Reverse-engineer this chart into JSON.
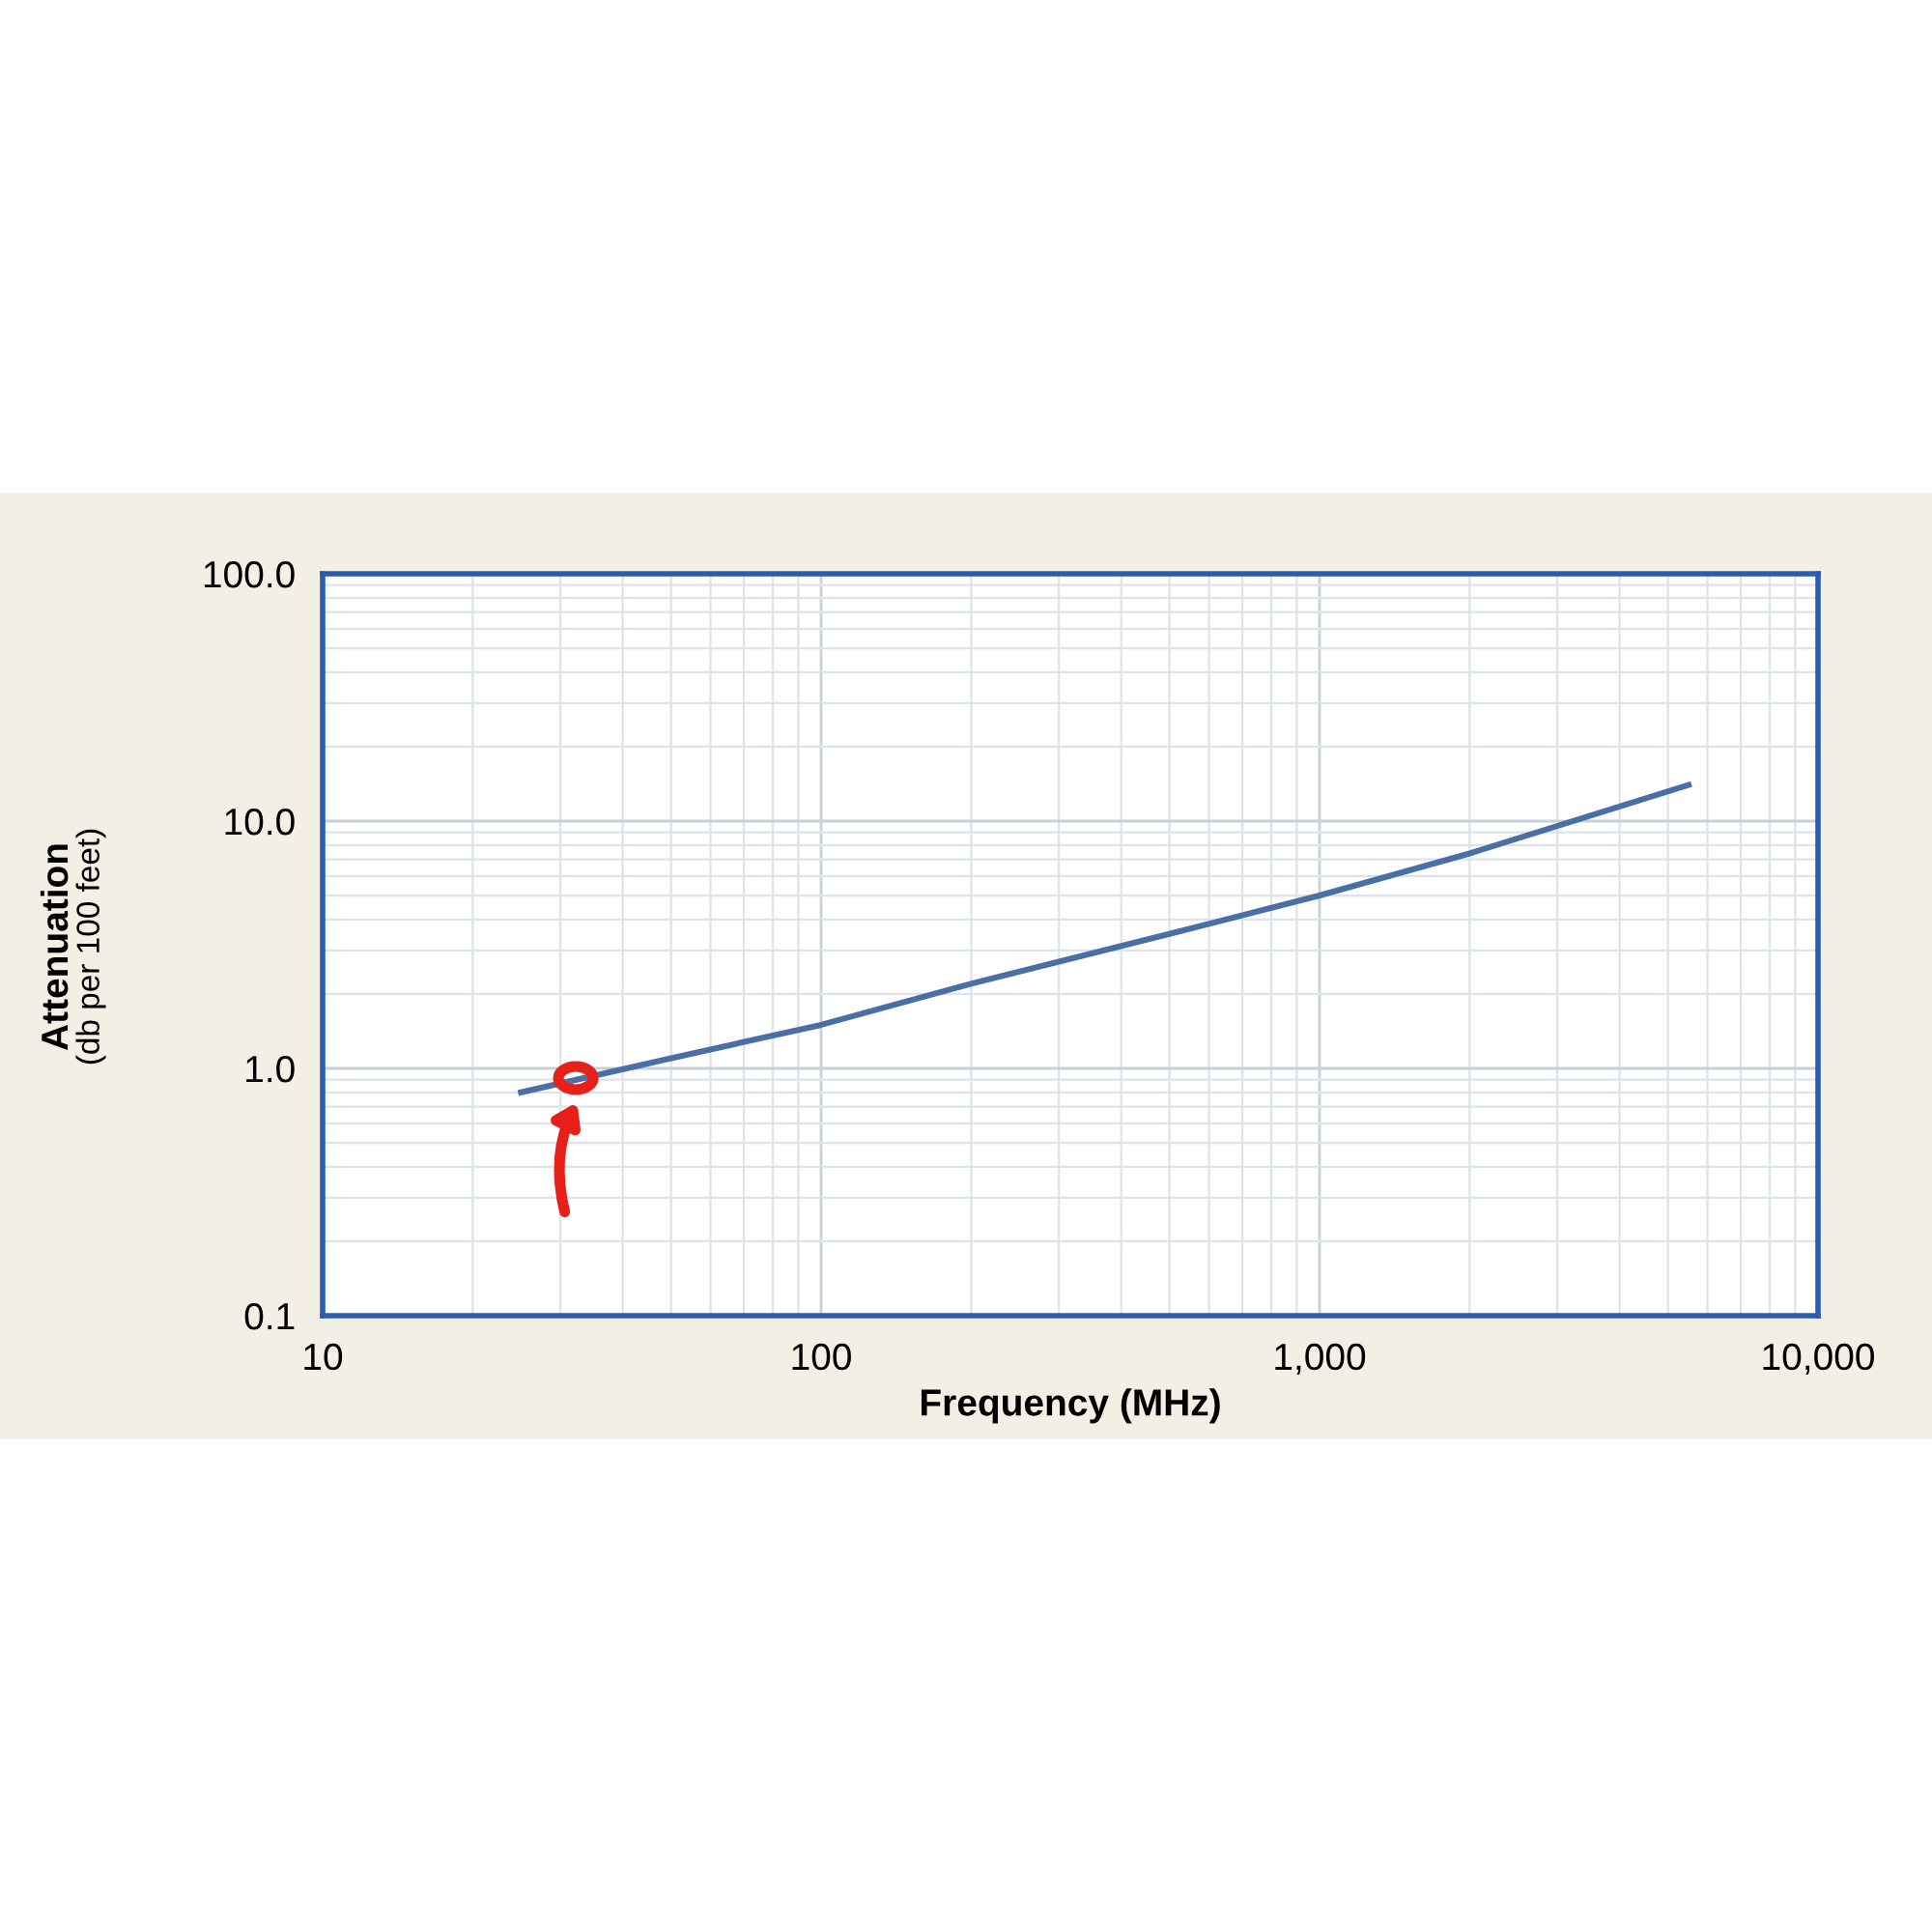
{
  "chart_data": {
    "type": "line",
    "xlabel": "Frequency (MHz)",
    "ylabel": "Attenuation\n(db per 100 feet)",
    "x": [
      25,
      50,
      100,
      200,
      500,
      1000,
      2000,
      5500
    ],
    "series": [
      {
        "color": "#4a6fa5",
        "values": [
          0.8,
          1.1,
          1.5,
          2.2,
          3.5,
          5.0,
          7.4,
          14
        ]
      }
    ],
    "log": "xy",
    "xlim": [
      10,
      10000
    ],
    "xticks": [
      10,
      100,
      {
        "value": 1000,
        "label": "1,000"
      },
      {
        "value": 10000,
        "label": "10,000"
      }
    ],
    "ylim": [
      0.1,
      100
    ],
    "yticks": [
      {
        "value": 0.1,
        "label": "0.1"
      },
      {
        "value": 1,
        "label": "1.0"
      },
      {
        "value": 10,
        "label": "10.0"
      },
      {
        "value": 100,
        "label": "100.0"
      }
    ],
    "grid": true,
    "marker": "none",
    "line_style": "solid"
  }
}
